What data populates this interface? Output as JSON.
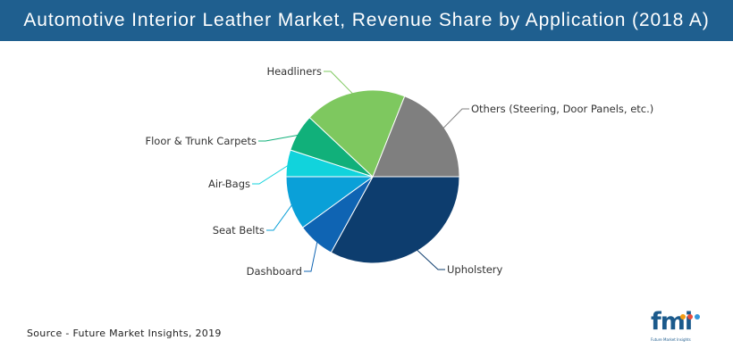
{
  "header": {
    "title": "Automotive Interior Leather Market, Revenue Share by Application (2018 A)"
  },
  "footer": {
    "source": "Source - Future Market Insights, 2019"
  },
  "logo": {
    "text": "fmi",
    "subtitle": "Future Market Insights",
    "icon": "fmi-logo"
  },
  "chart_data": {
    "type": "pie",
    "title": "Automotive Interior Leather Market, Revenue Share by Application (2018 A)",
    "unit": "%",
    "slices": [
      {
        "label": "Upholstery",
        "value": 33,
        "color": "#0d3d6e"
      },
      {
        "label": "Dashboard",
        "value": 7,
        "color": "#0f64b3"
      },
      {
        "label": "Seat Belts",
        "value": 10,
        "color": "#0aa0d8"
      },
      {
        "label": "Air-Bags",
        "value": 5,
        "color": "#11d3dc"
      },
      {
        "label": "Floor & Trunk Carpets",
        "value": 7,
        "color": "#11b07a"
      },
      {
        "label": "Headliners",
        "value": 19,
        "color": "#7ec85f"
      },
      {
        "label": "Others (Steering, Door Panels, etc.)",
        "value": 19,
        "color": "#7f7f7f"
      }
    ]
  }
}
